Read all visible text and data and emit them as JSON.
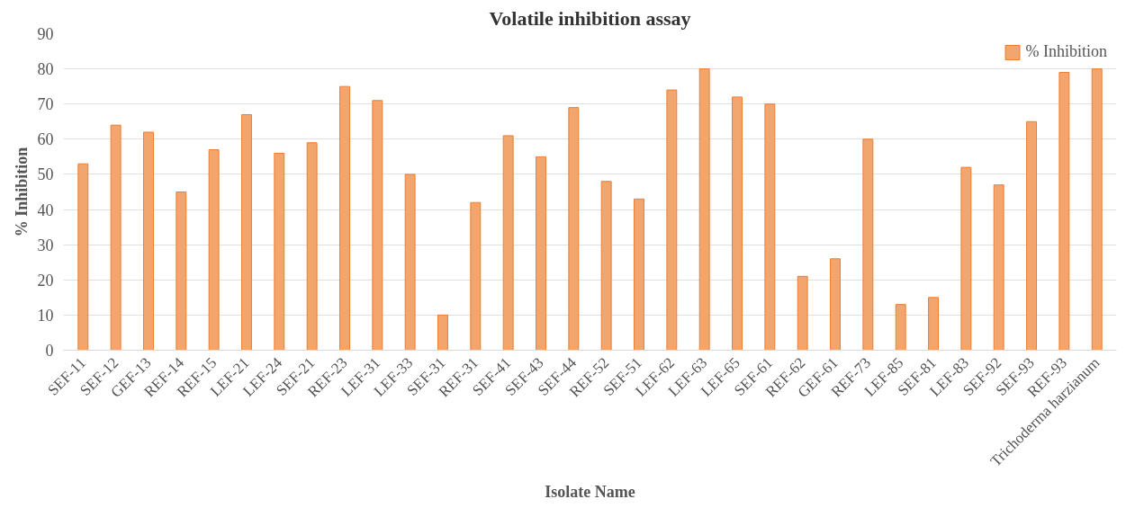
{
  "chart_data": {
    "type": "bar",
    "title": "Volatile inhibition assay",
    "xlabel": "Isolate Name",
    "ylabel": "% Inhibition",
    "categories": [
      "SEF-11",
      "SEF-12",
      "GEF-13",
      "REF-14",
      "REF-15",
      "LEF-21",
      "LEF-24",
      "SEF-21",
      "REF-23",
      "LEF-31",
      "LEF-33",
      "SEF-31",
      "REF-31",
      "SEF-41",
      "SEF-43",
      "SEF-44",
      "REF-52",
      "SEF-51",
      "LEF-62",
      "LEF-63",
      "LEF-65",
      "SEF-61",
      "REF-62",
      "GEF-61",
      "REF-73",
      "LEF-85",
      "SEF-81",
      "LEF-83",
      "SEF-92",
      "SEF-93",
      "REF-93",
      "Trichoderma harzianum"
    ],
    "series": [
      {
        "name": "% Inhibition",
        "color": "#f3a56e",
        "values": [
          53,
          64,
          62,
          45,
          57,
          67,
          56,
          59,
          75,
          71,
          50,
          10,
          42,
          61,
          55,
          69,
          48,
          43,
          74,
          80,
          72,
          70,
          21,
          26,
          60,
          13,
          15,
          52,
          47,
          65,
          79,
          80
        ]
      }
    ],
    "ylim": [
      0,
      90
    ],
    "yticks": [
      0,
      10,
      20,
      30,
      40,
      50,
      60,
      70,
      80,
      90
    ],
    "grid": "y",
    "legend": "top right"
  }
}
